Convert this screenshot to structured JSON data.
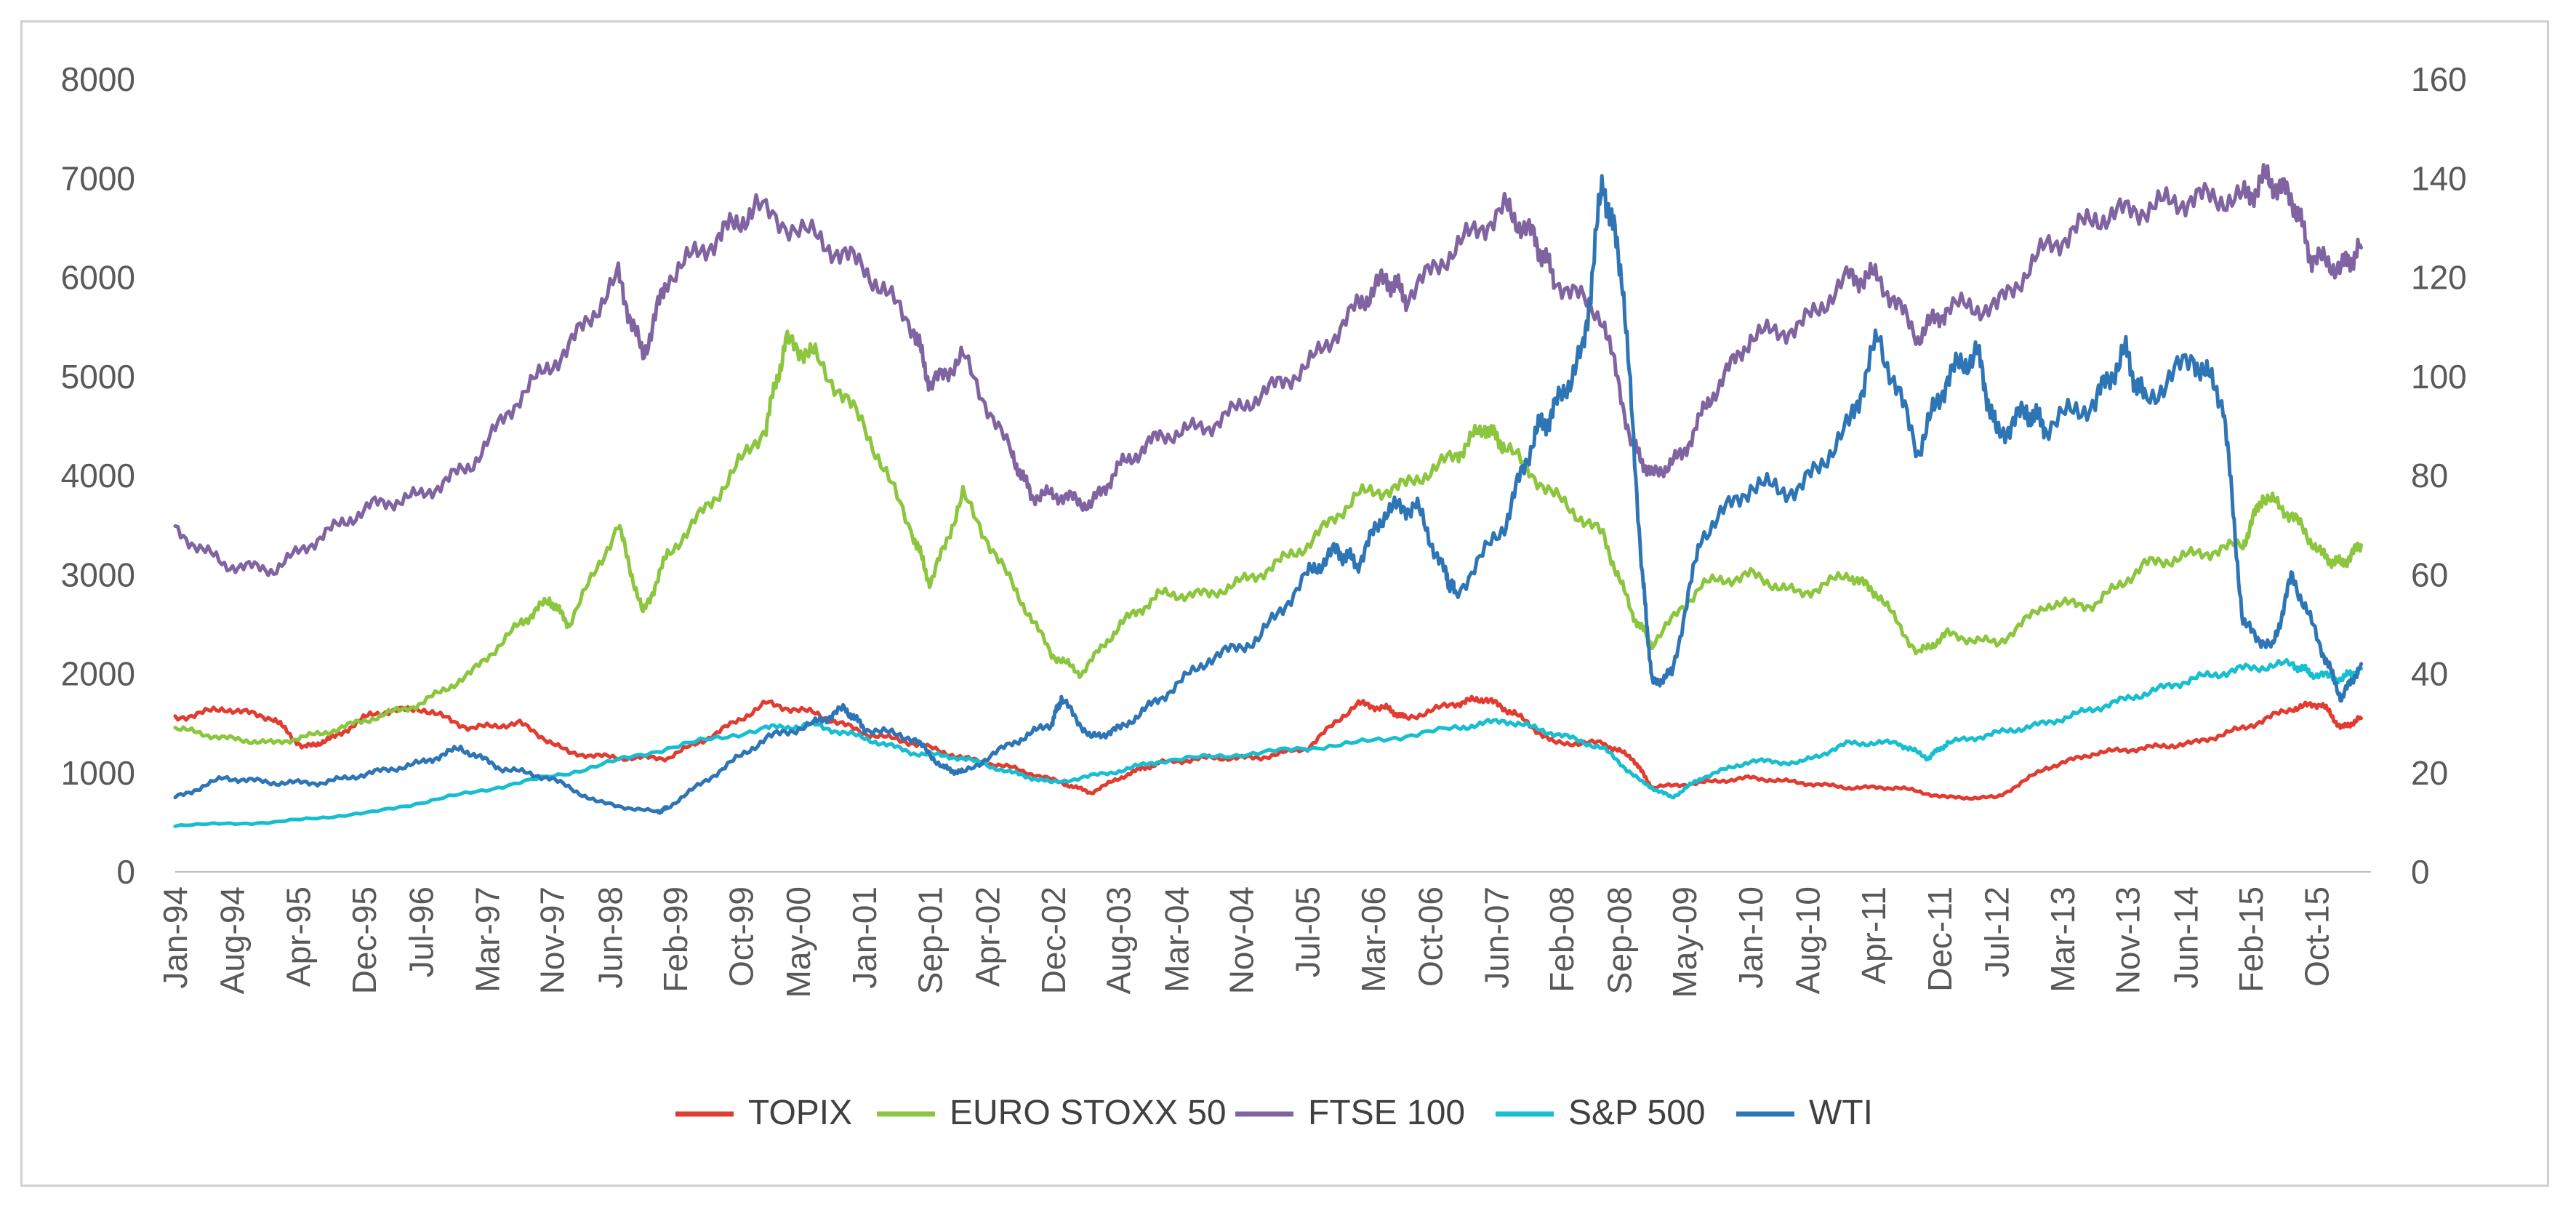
{
  "chart_data": {
    "type": "line",
    "title": "",
    "xlabel": "",
    "ylabel": "",
    "y2label": "",
    "ylim": [
      0,
      8000
    ],
    "y2lim": [
      0,
      160
    ],
    "yticks": [
      0,
      1000,
      2000,
      3000,
      4000,
      5000,
      6000,
      7000,
      8000
    ],
    "y2ticks": [
      0,
      20,
      40,
      60,
      80,
      100,
      120,
      140,
      160
    ],
    "xlim": [
      1994.0,
      2016.3
    ],
    "xtick_positions": [
      1994.0,
      1994.58,
      1995.25,
      1995.92,
      1996.5,
      1997.17,
      1997.83,
      1998.42,
      1999.08,
      1999.75,
      2000.33,
      2001.0,
      2001.67,
      2002.25,
      2002.92,
      2003.58,
      2004.17,
      2004.83,
      2005.5,
      2006.17,
      2006.75,
      2007.42,
      2008.08,
      2008.67,
      2009.33,
      2010.0,
      2010.58,
      2011.25,
      2011.92,
      2012.5,
      2013.17,
      2013.83,
      2014.42,
      2015.08,
      2015.75
    ],
    "xtick_labels": [
      "Jan-94",
      "Aug-94",
      "Apr-95",
      "Dec-95",
      "Jul-96",
      "Mar-97",
      "Nov-97",
      "Jun-98",
      "Feb-99",
      "Oct-99",
      "May-00",
      "Jan-01",
      "Sep-01",
      "Apr-02",
      "Dec-02",
      "Aug-03",
      "Mar-04",
      "Nov-04",
      "Jul-05",
      "Mar-06",
      "Oct-06",
      "Jun-07",
      "Feb-08",
      "Sep-08",
      "May-09",
      "Jan-10",
      "Aug-10",
      "Apr-11",
      "Dec-11",
      "Jul-12",
      "Mar-13",
      "Nov-13",
      "Jun-14",
      "Feb-15",
      "Oct-15"
    ],
    "legend_position": "bottom",
    "series": [
      {
        "name": "TOPIX",
        "color": "#e03c31",
        "axis": "left",
        "x": [
          1994.0,
          1994.5,
          1995.0,
          1995.3,
          1995.6,
          1996.0,
          1996.5,
          1997.0,
          1997.5,
          1998.0,
          1998.5,
          1999.0,
          1999.5,
          2000.0,
          2000.5,
          2001.0,
          2001.5,
          2002.0,
          2002.5,
          2003.0,
          2003.3,
          2003.7,
          2004.0,
          2004.5,
          2005.0,
          2005.5,
          2006.0,
          2006.3,
          2006.5,
          2007.0,
          2007.3,
          2007.6,
          2008.0,
          2008.5,
          2008.8,
          2009.0,
          2009.5,
          2010.0,
          2010.5,
          2011.0,
          2011.5,
          2012.0,
          2012.5,
          2013.0,
          2013.5,
          2014.0,
          2014.5,
          2015.0,
          2015.5,
          2015.8,
          2016.0,
          2016.2
        ],
        "values": [
          1550,
          1650,
          1550,
          1250,
          1350,
          1600,
          1650,
          1450,
          1500,
          1200,
          1150,
          1150,
          1400,
          1700,
          1600,
          1400,
          1300,
          1150,
          1050,
          900,
          800,
          1000,
          1100,
          1150,
          1150,
          1250,
          1700,
          1650,
          1550,
          1700,
          1750,
          1600,
          1300,
          1300,
          1150,
          850,
          900,
          950,
          900,
          850,
          850,
          750,
          750,
          1050,
          1200,
          1250,
          1300,
          1450,
          1650,
          1700,
          1450,
          1550
        ]
      },
      {
        "name": "EURO STOXX 50",
        "color": "#8cc63f",
        "axis": "left",
        "x": [
          1994.0,
          1994.5,
          1995.0,
          1995.5,
          1996.0,
          1996.5,
          1997.0,
          1997.5,
          1997.8,
          1998.0,
          1998.5,
          1998.75,
          1999.0,
          1999.5,
          2000.0,
          2000.2,
          2000.5,
          2001.0,
          2001.5,
          2001.67,
          2002.0,
          2002.5,
          2002.9,
          2003.2,
          2003.6,
          2004.0,
          2004.5,
          2005.0,
          2005.5,
          2006.0,
          2006.5,
          2007.0,
          2007.3,
          2007.5,
          2008.0,
          2008.5,
          2008.8,
          2009.0,
          2009.5,
          2010.0,
          2010.5,
          2011.0,
          2011.3,
          2011.7,
          2012.0,
          2012.5,
          2013.0,
          2013.5,
          2014.0,
          2014.5,
          2015.0,
          2015.2,
          2015.5,
          2015.8,
          2016.0,
          2016.2
        ],
        "values": [
          1450,
          1350,
          1300,
          1400,
          1550,
          1700,
          2000,
          2500,
          2750,
          2500,
          3500,
          2600,
          3200,
          3800,
          4500,
          5350,
          5200,
          4500,
          3400,
          2900,
          3800,
          2900,
          2200,
          2000,
          2500,
          2800,
          2800,
          3000,
          3300,
          3800,
          3900,
          4200,
          4500,
          4300,
          3800,
          3400,
          2600,
          2300,
          2900,
          3000,
          2800,
          3000,
          2800,
          2200,
          2400,
          2300,
          2700,
          2700,
          3100,
          3200,
          3300,
          3800,
          3600,
          3200,
          3100,
          3300
        ]
      },
      {
        "name": "FTSE 100",
        "color": "#8064a2",
        "axis": "left",
        "x": [
          1994.0,
          1994.5,
          1995.0,
          1995.5,
          1996.0,
          1996.5,
          1997.0,
          1997.5,
          1998.0,
          1998.5,
          1998.75,
          1999.0,
          1999.5,
          1999.9,
          2000.5,
          2001.0,
          2001.5,
          2001.67,
          2002.0,
          2002.5,
          2002.7,
          2003.0,
          2003.3,
          2003.6,
          2004.0,
          2004.5,
          2005.0,
          2005.5,
          2006.0,
          2006.3,
          2006.5,
          2007.0,
          2007.5,
          2007.8,
          2008.0,
          2008.5,
          2008.8,
          2009.0,
          2009.3,
          2009.6,
          2010.0,
          2010.5,
          2011.0,
          2011.3,
          2011.7,
          2012.0,
          2012.5,
          2013.0,
          2013.5,
          2014.0,
          2014.5,
          2015.0,
          2015.25,
          2015.5,
          2015.7,
          2016.0,
          2016.2
        ],
        "values": [
          3450,
          3100,
          3050,
          3400,
          3700,
          3800,
          4100,
          4800,
          5300,
          6000,
          5200,
          6000,
          6400,
          6700,
          6400,
          6100,
          5500,
          4900,
          5200,
          4200,
          3800,
          3800,
          3700,
          4100,
          4400,
          4500,
          4800,
          5100,
          5700,
          6000,
          5800,
          6300,
          6700,
          6400,
          6000,
          5600,
          4300,
          4000,
          4200,
          4800,
          5400,
          5500,
          6000,
          6000,
          5400,
          5700,
          5700,
          6300,
          6600,
          6700,
          6800,
          6800,
          7000,
          6800,
          6200,
          6100,
          6300
        ]
      },
      {
        "name": "S&P 500",
        "color": "#17becf",
        "axis": "left",
        "x": [
          1994.0,
          1995.0,
          1996.0,
          1997.0,
          1998.0,
          1999.0,
          2000.0,
          2000.5,
          2001.0,
          2001.5,
          2002.0,
          2002.5,
          2002.9,
          2003.5,
          2004.0,
          2005.0,
          2006.0,
          2007.0,
          2007.5,
          2008.0,
          2008.5,
          2008.9,
          2009.2,
          2009.5,
          2010.0,
          2010.5,
          2011.0,
          2011.5,
          2011.8,
          2012.0,
          2012.5,
          2013.0,
          2013.5,
          2014.0,
          2014.5,
          2015.0,
          2015.5,
          2015.7,
          2016.0,
          2016.2
        ],
        "values": [
          470,
          500,
          600,
          800,
          1000,
          1250,
          1450,
          1480,
          1350,
          1200,
          1150,
          1000,
          900,
          1000,
          1120,
          1200,
          1300,
          1450,
          1530,
          1400,
          1250,
          900,
          750,
          950,
          1120,
          1100,
          1300,
          1300,
          1150,
          1300,
          1400,
          1500,
          1650,
          1800,
          1950,
          2050,
          2100,
          2000,
          1950,
          2050
        ]
      },
      {
        "name": "WTI",
        "color": "#2e75b6",
        "axis": "right",
        "x": [
          1994.0,
          1994.5,
          1995.0,
          1995.5,
          1996.0,
          1996.5,
          1996.9,
          1997.3,
          1997.8,
          1998.3,
          1998.9,
          1999.0,
          1999.5,
          2000.0,
          2000.5,
          2000.8,
          2001.0,
          2001.5,
          2001.8,
          2002.0,
          2002.5,
          2002.9,
          2003.0,
          2003.3,
          2003.6,
          2004.0,
          2004.5,
          2005.0,
          2005.5,
          2005.8,
          2006.0,
          2006.3,
          2006.6,
          2006.9,
          2007.0,
          2007.5,
          2007.8,
          2008.0,
          2008.3,
          2008.5,
          2008.7,
          2008.9,
          2009.0,
          2009.2,
          2009.5,
          2010.0,
          2010.5,
          2011.0,
          2011.3,
          2011.7,
          2012.0,
          2012.3,
          2012.5,
          2012.8,
          2013.0,
          2013.5,
          2013.8,
          2014.0,
          2014.5,
          2014.8,
          2015.0,
          2015.3,
          2015.5,
          2015.8,
          2016.0,
          2016.2
        ],
        "values": [
          15,
          19,
          18,
          18,
          20,
          22,
          25,
          21,
          19,
          14,
          12,
          13,
          20,
          27,
          30,
          33,
          29,
          27,
          21,
          20,
          26,
          30,
          35,
          27,
          29,
          35,
          43,
          47,
          60,
          65,
          62,
          73,
          74,
          60,
          56,
          70,
          88,
          93,
          105,
          140,
          120,
          60,
          38,
          40,
          68,
          78,
          77,
          90,
          108,
          85,
          100,
          105,
          88,
          93,
          90,
          95,
          105,
          95,
          104,
          95,
          50,
          45,
          60,
          45,
          35,
          42
        ]
      }
    ]
  }
}
